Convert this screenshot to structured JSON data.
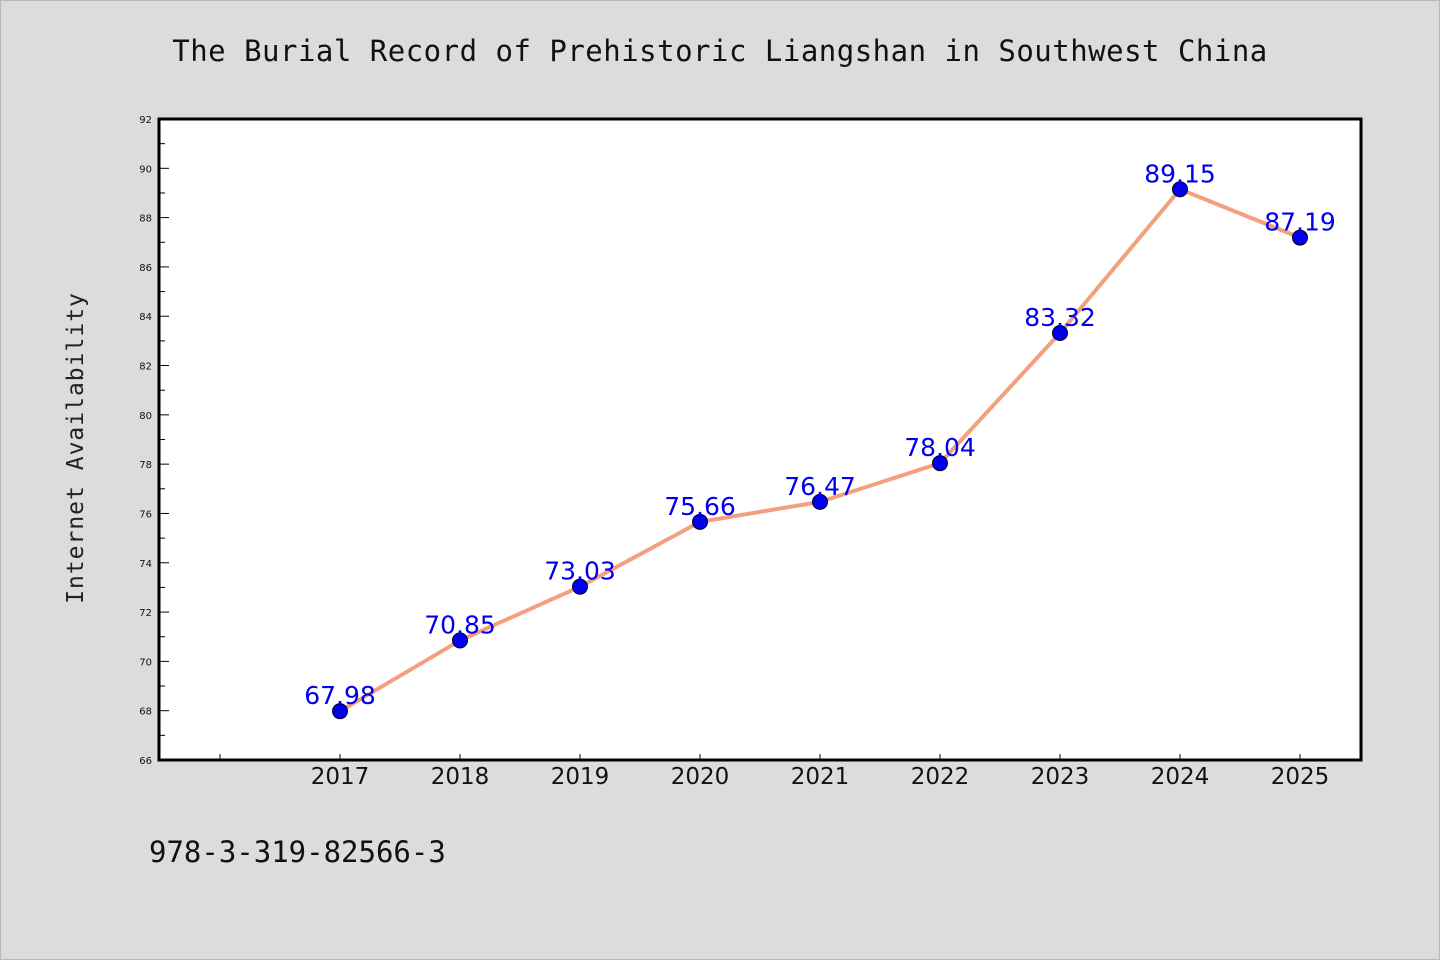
{
  "title": "The Burial Record of Prehistoric Liangshan in Southwest China",
  "footer_code": "978-3-319-82566-3",
  "chart_data": {
    "type": "line",
    "title": "The Burial Record of Prehistoric Liangshan in Southwest China",
    "xlabel": "",
    "ylabel": "Internet Availability",
    "categories": [
      "2017",
      "2018",
      "2019",
      "2020",
      "2021",
      "2022",
      "2023",
      "2024",
      "2025"
    ],
    "values": [
      67.98,
      70.85,
      73.03,
      75.66,
      76.47,
      78.04,
      83.32,
      89.15,
      87.19
    ],
    "data_labels": [
      "67.98",
      "70.85",
      "73.03",
      "75.66",
      "76.47",
      "78.04",
      "83.32",
      "89.15",
      "87.19"
    ],
    "ylim": [
      66,
      92
    ],
    "yticks": [
      66,
      68,
      70,
      72,
      74,
      76,
      78,
      80,
      82,
      84,
      86,
      88,
      90,
      92
    ],
    "grid": false,
    "legend": "none",
    "colors": {
      "line": "#f4a07e",
      "marker": "#0000ee",
      "label": "#0000ee",
      "background": "#dcdcdc",
      "plot_background": "#ffffff"
    }
  }
}
